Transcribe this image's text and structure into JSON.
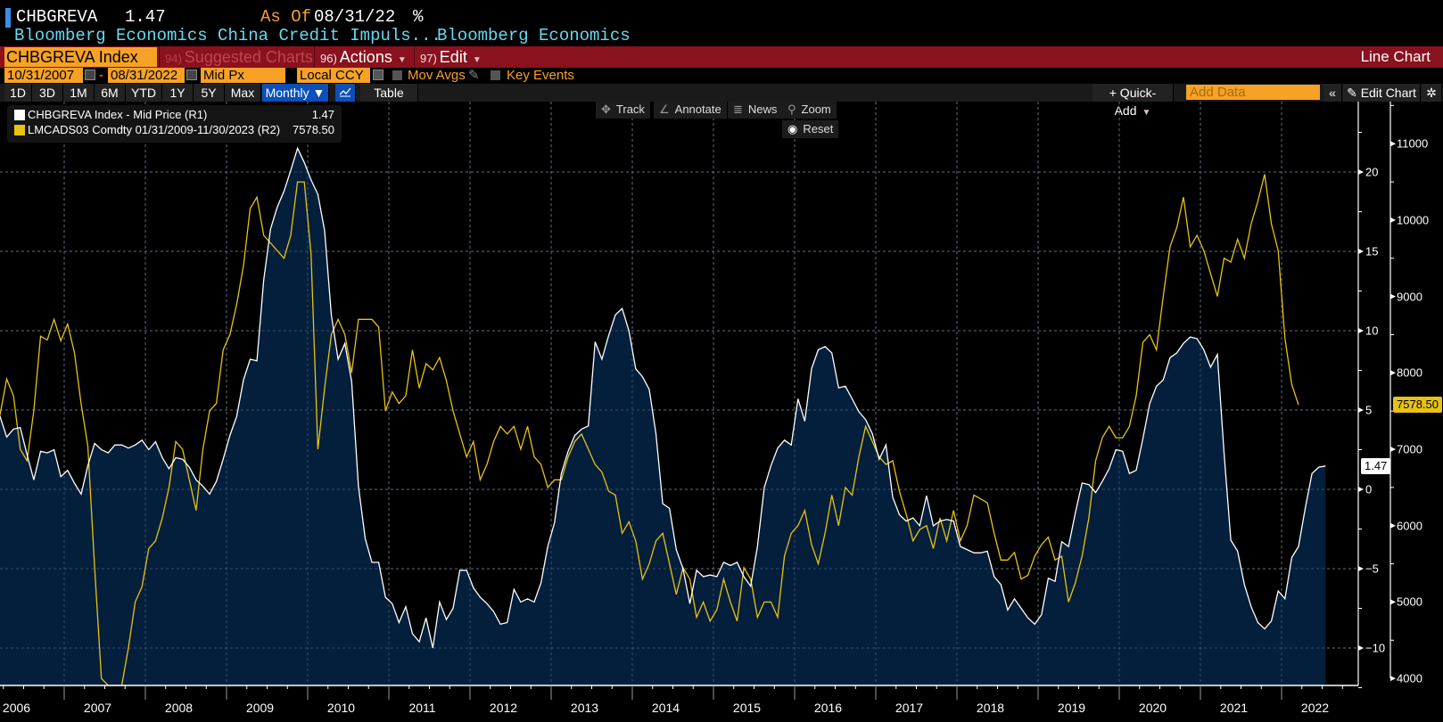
{
  "header": {
    "ticker": "CHBGREVA",
    "last_value": "1.47",
    "as_of_label": "As Of",
    "as_of_date": "08/31/22",
    "unit": "%",
    "description": "Bloomberg Economics China Credit Impuls...",
    "source": "Bloomberg Economics"
  },
  "menubar": {
    "security": "CHBGREVA Index",
    "suggested_num": "94)",
    "suggested": "Suggested Charts",
    "actions_num": "96)",
    "actions": "Actions",
    "edit_num": "97)",
    "edit": "Edit",
    "chart_type": "Line Chart"
  },
  "options": {
    "start_date": "10/31/2007",
    "separator": "-",
    "end_date": "08/31/2022",
    "price_field": "Mid Px",
    "currency": "Local CCY",
    "mov_avgs": "Mov Avgs",
    "key_events": "Key Events"
  },
  "toolbar": {
    "ranges": [
      "1D",
      "3D",
      "1M",
      "6M",
      "YTD",
      "1Y",
      "5Y",
      "Max"
    ],
    "frequency": "Monthly ▼",
    "table": "Table",
    "quick_add": "+ Quick-Add",
    "add_data_placeholder": "Add Data",
    "collapse": "«",
    "edit_chart": "Edit Chart"
  },
  "chart_controls": {
    "track": "Track",
    "annotate": "Annotate",
    "news": "News",
    "zoom": "Zoom",
    "reset": "Reset"
  },
  "colors": {
    "series1": "#ffffff",
    "series1_fill": "#041f3c",
    "series2": "#e8c214",
    "menu_bar": "#8a111e",
    "field": "#f7a226",
    "selected": "#0b4fb8"
  },
  "chart_data": {
    "type": "line",
    "title": "CHBGREVA Index vs LMCADS03 Comdty",
    "xlabel": "",
    "x_start": "2006-01",
    "x_end": "2022-08",
    "x_ticks": [
      "2006",
      "2007",
      "2008",
      "2009",
      "2010",
      "2011",
      "2012",
      "2013",
      "2014",
      "2015",
      "2016",
      "2017",
      "2018",
      "2019",
      "2020",
      "2021",
      "2022"
    ],
    "grid": true,
    "legend_position": "top-left",
    "axes": {
      "R1": {
        "ticks": [
          20,
          15,
          10,
          5,
          0,
          -5,
          -10
        ],
        "range": [
          -12.5,
          22.5
        ]
      },
      "R2": {
        "ticks": [
          11000,
          10000,
          9000,
          8000,
          7000,
          6000,
          5000,
          4000
        ],
        "range": [
          4000,
          11350
        ]
      }
    },
    "series": [
      {
        "name": "CHBGREVA Index - Mid Price (R1)",
        "legend_value": "1.47",
        "axis": "R1",
        "last_value": 1.47,
        "start": "2006-01",
        "style": "area",
        "values": [
          2.3,
          3.2,
          4.6,
          3.3,
          3.8,
          3.9,
          2.2,
          0.6,
          2.4,
          2.3,
          2.5,
          0.8,
          1.2,
          0.4,
          -0.3,
          1.5,
          2.9,
          2.5,
          2.3,
          2.8,
          2.8,
          2.6,
          2.8,
          3.1,
          2.5,
          3.0,
          2.0,
          1.3,
          2.0,
          1.9,
          1.4,
          0.6,
          0.2,
          -0.3,
          0.5,
          1.9,
          3.4,
          4.6,
          6.9,
          8.2,
          8.1,
          13.2,
          16.4,
          17.8,
          18.8,
          20.1,
          21.5,
          20.6,
          19.5,
          18.6,
          16.3,
          11.0,
          8.2,
          9.2,
          6.8,
          0.2,
          -3.1,
          -4.6,
          -4.6,
          -6.8,
          -7.2,
          -8.4,
          -7.4,
          -9.1,
          -9.6,
          -8.1,
          -10.0,
          -7.1,
          -8.2,
          -7.5,
          -5.1,
          -5.1,
          -6.2,
          -6.8,
          -7.2,
          -7.7,
          -8.5,
          -8.4,
          -6.3,
          -7.1,
          -6.9,
          -7.1,
          -5.9,
          -3.6,
          -2.1,
          1.0,
          2.4,
          3.4,
          3.8,
          4.0,
          9.3,
          8.2,
          9.7,
          11.0,
          11.4,
          10.0,
          7.6,
          7.1,
          6.3,
          3.5,
          -0.9,
          -1.2,
          -3.8,
          -5.0,
          -7.2,
          -5.1,
          -5.5,
          -5.4,
          -5.5,
          -4.6,
          -4.8,
          -4.6,
          -5.5,
          -6.1,
          -3.6,
          0.1,
          1.5,
          2.6,
          3.1,
          2.8,
          5.7,
          4.3,
          7.6,
          8.8,
          9.0,
          8.6,
          6.4,
          6.5,
          5.7,
          4.9,
          4.4,
          3.5,
          1.9,
          2.8,
          -0.5,
          -1.6,
          -2.0,
          -1.8,
          -2.3,
          -0.4,
          -2.3,
          -2.0,
          -1.9,
          -2.0,
          -3.6,
          -3.8,
          -4.0,
          -4.0,
          -3.9,
          -5.5,
          -6.0,
          -7.6,
          -6.9,
          -7.5,
          -8.1,
          -8.5,
          -7.9,
          -5.6,
          -5.8,
          -3.3,
          -3.6,
          -1.5,
          0.4,
          0.3,
          -0.2,
          0.5,
          1.3,
          2.5,
          2.4,
          1.0,
          1.2,
          3.2,
          5.4,
          6.5,
          6.9,
          8.3,
          8.6,
          9.2,
          9.6,
          9.5,
          8.8,
          7.7,
          8.5,
          2.3,
          -3.2,
          -3.9,
          -6.0,
          -7.4,
          -8.4,
          -8.8,
          -8.3,
          -6.4,
          -6.9,
          -4.3,
          -3.6,
          -1.2,
          1.0,
          1.4,
          1.47
        ]
      },
      {
        "name": "LMCADS03 Comdty 01/31/2009-11/30/2023 (R2)",
        "legend_value": "7578.50",
        "axis": "R2",
        "last_value": 7578.5,
        "start": "2006-01",
        "style": "line",
        "values": [
          7500,
          7950,
          7450,
          7920,
          7700,
          7000,
          6850,
          7500,
          8480,
          8430,
          8700,
          8420,
          8640,
          8270,
          7590,
          7040,
          5450,
          4000,
          3200,
          3300,
          3900,
          4400,
          5000,
          5200,
          5700,
          5800,
          6100,
          6500,
          7100,
          7000,
          6600,
          6200,
          7000,
          7500,
          7600,
          8300,
          8500,
          8900,
          9400,
          10150,
          10300,
          9800,
          9700,
          9600,
          9500,
          9800,
          10500,
          10500,
          9550,
          7000,
          7800,
          8500,
          8700,
          8500,
          8000,
          8700,
          8700,
          8700,
          8600,
          7500,
          7750,
          7600,
          7700,
          8300,
          7800,
          8120,
          8040,
          8200,
          7900,
          7500,
          7200,
          6900,
          7100,
          6600,
          6800,
          7100,
          7300,
          7200,
          7300,
          7000,
          7300,
          6900,
          6800,
          6500,
          6600,
          6600,
          6900,
          7100,
          7200,
          7000,
          6800,
          6700,
          6450,
          6400,
          5900,
          6050,
          5800,
          5300,
          5500,
          5800,
          5900,
          5500,
          5100,
          5450,
          5300,
          4800,
          5000,
          4750,
          4900,
          5300,
          5000,
          4750,
          5450,
          5300,
          4800,
          5000,
          5000,
          4800,
          5600,
          5900,
          6000,
          6200,
          5750,
          5500,
          5900,
          6400,
          6000,
          6500,
          6400,
          6900,
          7300,
          7100,
          6900,
          6800,
          6850,
          6450,
          6150,
          5800,
          5950,
          6000,
          5700,
          6100,
          5800,
          6200,
          5800,
          6000,
          6400,
          6350,
          6300,
          5900,
          5550,
          5550,
          5650,
          5300,
          5350,
          5600,
          5750,
          5850,
          5550,
          5600,
          5000,
          5250,
          5600,
          6100,
          6850,
          7150,
          7300,
          7150,
          7150,
          7300,
          7700,
          8400,
          8500,
          8300,
          9000,
          9650,
          9900,
          10300,
          9650,
          9800,
          9600,
          9300,
          9000,
          9500,
          9450,
          9750,
          9500,
          9950,
          10250,
          10600,
          9950,
          9600,
          8450,
          7850,
          7580
        ],
        "note": "values approximate; series truncated at last printed point"
      }
    ]
  }
}
